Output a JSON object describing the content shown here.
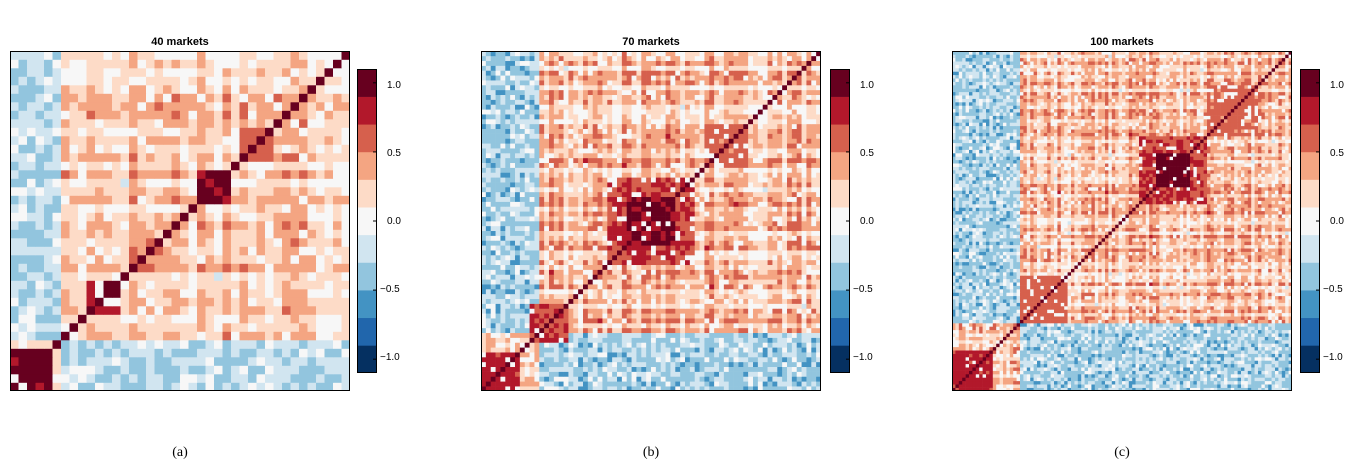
{
  "chart_data": [
    {
      "type": "heatmap",
      "title": "40 markets",
      "n": 40,
      "caption": "(a)",
      "colorbar": {
        "range": [
          -1.1,
          1.1
        ],
        "ticks": [
          "−1.0",
          "−0.5",
          "0.0",
          "0.5",
          "1.0"
        ],
        "tick_values": [
          -1.0,
          -0.5,
          0.0,
          0.5,
          1.0
        ]
      },
      "blocks": [
        {
          "start": 0,
          "end": 5,
          "value": 0.95
        },
        {
          "start": 9,
          "end": 13,
          "value": 0.9
        },
        {
          "start": 14,
          "end": 18,
          "value": 0.55
        },
        {
          "start": 22,
          "end": 26,
          "value": 0.9
        },
        {
          "start": 27,
          "end": 31,
          "value": 0.55
        }
      ],
      "background_level": 0.3,
      "negative_group": {
        "start": 0,
        "end": 6,
        "value": -0.3
      }
    },
    {
      "type": "heatmap",
      "title": "70 markets",
      "n": 70,
      "caption": "(b)",
      "colorbar": {
        "range": [
          -1.1,
          1.1
        ],
        "ticks": [
          "−1.0",
          "−0.5",
          "0.0",
          "0.5",
          "1.0"
        ],
        "tick_values": [
          -1.0,
          -0.5,
          0.0,
          0.5,
          1.0
        ]
      },
      "blocks": [
        {
          "start": 0,
          "end": 8,
          "value": 0.75
        },
        {
          "start": 10,
          "end": 18,
          "value": 0.7
        },
        {
          "start": 26,
          "end": 44,
          "value": 0.7
        },
        {
          "start": 30,
          "end": 40,
          "value": 0.9
        },
        {
          "start": 46,
          "end": 55,
          "value": 0.55
        }
      ],
      "background_level": 0.3,
      "negative_group": {
        "start": 0,
        "end": 12,
        "value": -0.35
      }
    },
    {
      "type": "heatmap",
      "title": "100 markets",
      "n": 100,
      "caption": "(c)",
      "colorbar": {
        "range": [
          -1.1,
          1.1
        ],
        "ticks": [
          "−1.0",
          "−0.5",
          "0.0",
          "0.5",
          "1.0"
        ],
        "tick_values": [
          -1.0,
          -0.5,
          0.0,
          0.5,
          1.0
        ]
      },
      "blocks": [
        {
          "start": 0,
          "end": 12,
          "value": 0.75
        },
        {
          "start": 20,
          "end": 34,
          "value": 0.6
        },
        {
          "start": 55,
          "end": 75,
          "value": 0.7
        },
        {
          "start": 60,
          "end": 70,
          "value": 0.95
        },
        {
          "start": 75,
          "end": 90,
          "value": 0.55
        }
      ],
      "background_level": 0.3,
      "negative_group": {
        "start": 0,
        "end": 20,
        "value": -0.35
      }
    }
  ],
  "palette": [
    "#053061",
    "#2166ac",
    "#4393c3",
    "#92c5de",
    "#d1e5f0",
    "#f7f7f7",
    "#fddbc7",
    "#f4a582",
    "#d6604d",
    "#b2182b",
    "#67001f"
  ]
}
